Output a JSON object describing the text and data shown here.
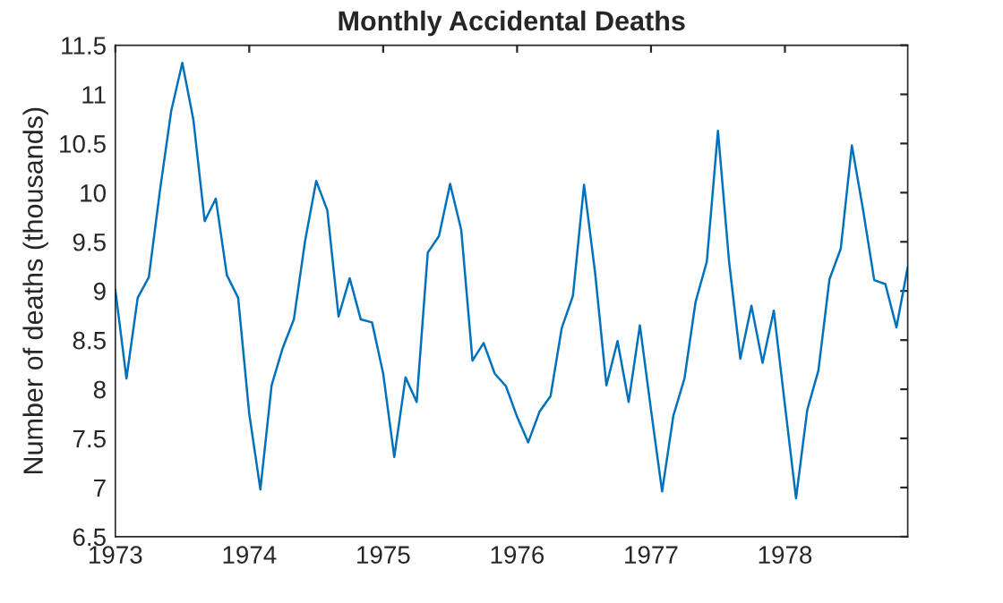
{
  "chart_data": {
    "type": "line",
    "title": "Monthly Accidental Deaths",
    "ylabel": "Number of deaths (thousands)",
    "x": [
      1973.0,
      1973.083,
      1973.167,
      1973.25,
      1973.333,
      1973.417,
      1973.5,
      1973.583,
      1973.667,
      1973.75,
      1973.833,
      1973.917,
      1974.0,
      1974.083,
      1974.167,
      1974.25,
      1974.333,
      1974.417,
      1974.5,
      1974.583,
      1974.667,
      1974.75,
      1974.833,
      1974.917,
      1975.0,
      1975.083,
      1975.167,
      1975.25,
      1975.333,
      1975.417,
      1975.5,
      1975.583,
      1975.667,
      1975.75,
      1975.833,
      1975.917,
      1976.0,
      1976.083,
      1976.167,
      1976.25,
      1976.333,
      1976.417,
      1976.5,
      1976.583,
      1976.667,
      1976.75,
      1976.833,
      1976.917,
      1977.0,
      1977.083,
      1977.167,
      1977.25,
      1977.333,
      1977.417,
      1977.5,
      1977.583,
      1977.667,
      1977.75,
      1977.833,
      1977.917,
      1978.0,
      1978.083,
      1978.167,
      1978.25,
      1978.333,
      1978.417,
      1978.5,
      1978.583,
      1978.667,
      1978.75,
      1978.833,
      1978.917
    ],
    "series": [
      {
        "color": "#0072bd",
        "values": [
          9.01,
          8.11,
          8.93,
          9.14,
          10.02,
          10.83,
          11.32,
          10.74,
          9.71,
          9.94,
          9.16,
          8.93,
          7.75,
          6.98,
          8.04,
          8.42,
          8.71,
          9.51,
          10.12,
          9.82,
          8.74,
          9.13,
          8.71,
          8.68,
          8.16,
          7.31,
          8.12,
          7.87,
          9.39,
          9.56,
          10.09,
          9.62,
          8.29,
          8.47,
          8.16,
          8.03,
          7.72,
          7.46,
          7.77,
          7.93,
          8.62,
          8.95,
          10.08,
          9.18,
          8.04,
          8.49,
          7.87,
          8.65,
          7.79,
          6.96,
          7.73,
          8.11,
          8.89,
          9.3,
          10.63,
          9.3,
          8.31,
          8.85,
          8.27,
          8.8,
          7.84,
          6.89,
          7.79,
          8.19,
          9.12,
          9.43,
          10.48,
          9.83,
          9.11,
          9.07,
          8.63,
          9.24
        ]
      }
    ],
    "xlim": [
      1973.0,
      1978.917
    ],
    "xticks": [
      1973,
      1974,
      1975,
      1976,
      1977,
      1978
    ],
    "ylim": [
      6.5,
      11.5
    ],
    "yticks": [
      6.5,
      7,
      7.5,
      8,
      8.5,
      9,
      9.5,
      10,
      10.5,
      11,
      11.5
    ],
    "grid": false,
    "legend": false,
    "marker": "none",
    "line_style": "solid"
  }
}
